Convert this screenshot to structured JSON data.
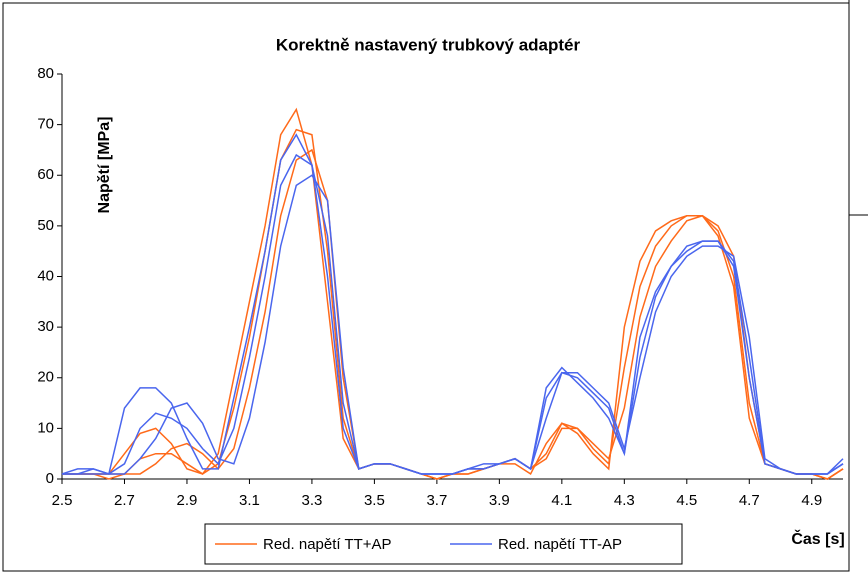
{
  "chart_data": {
    "type": "line",
    "title": "Korektně nastavený trubkový adaptér",
    "x_label": "Čas [s]",
    "y_label": "Napětí [MPa]",
    "x": [
      2.5,
      2.55,
      2.6,
      2.65,
      2.7,
      2.75,
      2.8,
      2.85,
      2.9,
      2.95,
      3.0,
      3.05,
      3.1,
      3.15,
      3.2,
      3.25,
      3.3,
      3.35,
      3.4,
      3.45,
      3.5,
      3.55,
      3.6,
      3.65,
      3.7,
      3.75,
      3.8,
      3.85,
      3.9,
      3.95,
      4.0,
      4.05,
      4.1,
      4.15,
      4.2,
      4.25,
      4.3,
      4.35,
      4.4,
      4.45,
      4.5,
      4.55,
      4.6,
      4.65,
      4.7,
      4.75,
      4.8,
      4.85,
      4.9,
      4.95,
      5.0
    ],
    "series": [
      {
        "name": "Red. napětí TT+AP",
        "color": "#ff6a1a",
        "values": [
          [
            1,
            1,
            1,
            1,
            5,
            9,
            10,
            7,
            2,
            1,
            5,
            20,
            35,
            50,
            68,
            73,
            62,
            35,
            8,
            2,
            3,
            3,
            2,
            1,
            0,
            1,
            1,
            2,
            3,
            3,
            1,
            7,
            11,
            9,
            5,
            2,
            30,
            43,
            49,
            51,
            52,
            52,
            48,
            38,
            12,
            3,
            2,
            1,
            1,
            0,
            2
          ],
          [
            1,
            1,
            1,
            0,
            1,
            4,
            5,
            5,
            3,
            1,
            3,
            14,
            28,
            45,
            63,
            69,
            68,
            45,
            12,
            2,
            3,
            3,
            2,
            1,
            0,
            1,
            1,
            2,
            3,
            4,
            2,
            5,
            11,
            10,
            6,
            3,
            22,
            38,
            46,
            50,
            52,
            52,
            49,
            40,
            15,
            3,
            2,
            1,
            1,
            0,
            2
          ],
          [
            1,
            1,
            1,
            1,
            1,
            1,
            3,
            6,
            7,
            5,
            2,
            6,
            18,
            33,
            52,
            63,
            65,
            55,
            20,
            2,
            3,
            3,
            2,
            1,
            0,
            1,
            2,
            2,
            3,
            4,
            2,
            4,
            10,
            10,
            7,
            4,
            14,
            32,
            42,
            47,
            51,
            52,
            50,
            44,
            20,
            3,
            2,
            1,
            1,
            0,
            2
          ]
        ]
      },
      {
        "name": "Red. napětí TT-AP",
        "color": "#4a66ee",
        "values": [
          [
            1,
            2,
            2,
            1,
            14,
            18,
            18,
            15,
            8,
            2,
            2,
            16,
            30,
            45,
            63,
            68,
            62,
            40,
            10,
            2,
            3,
            3,
            2,
            1,
            1,
            1,
            2,
            2,
            3,
            4,
            2,
            18,
            22,
            19,
            16,
            12,
            5,
            28,
            37,
            42,
            45,
            47,
            47,
            42,
            20,
            3,
            2,
            1,
            1,
            1,
            3
          ],
          [
            1,
            1,
            2,
            1,
            3,
            10,
            13,
            12,
            10,
            6,
            3,
            10,
            24,
            40,
            58,
            64,
            62,
            48,
            15,
            2,
            3,
            3,
            2,
            1,
            1,
            1,
            2,
            2,
            3,
            4,
            2,
            16,
            21,
            20,
            17,
            14,
            5,
            24,
            36,
            42,
            46,
            47,
            47,
            43,
            24,
            3,
            2,
            1,
            1,
            1,
            3
          ],
          [
            1,
            1,
            1,
            1,
            1,
            4,
            8,
            14,
            15,
            11,
            4,
            3,
            12,
            27,
            46,
            58,
            60,
            55,
            22,
            2,
            3,
            3,
            2,
            1,
            1,
            1,
            2,
            3,
            3,
            4,
            2,
            12,
            21,
            21,
            18,
            15,
            6,
            20,
            33,
            40,
            44,
            46,
            46,
            44,
            28,
            4,
            2,
            1,
            1,
            1,
            4
          ]
        ]
      }
    ],
    "xlim": [
      2.5,
      5.0
    ],
    "xticks": [
      2.5,
      2.7,
      2.9,
      3.1,
      3.3,
      3.5,
      3.7,
      3.9,
      4.1,
      4.3,
      4.5,
      4.7,
      4.9
    ],
    "ylim": [
      0,
      80
    ],
    "yticks": [
      0,
      10,
      20,
      30,
      40,
      50,
      60,
      70,
      80
    ],
    "grid": false
  }
}
